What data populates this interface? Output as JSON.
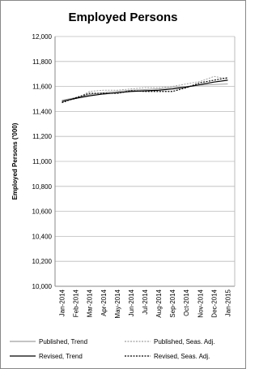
{
  "chart_data": {
    "type": "line",
    "title": "Employed Persons",
    "y_label": "Employed Persons ('000)",
    "categories": [
      "Jan-2014",
      "Feb-2014",
      "Mar-2014",
      "Apr-2014",
      "May-2014",
      "Jun-2014",
      "Jul-2014",
      "Aug-2014",
      "Sep-2014",
      "Oct-2014",
      "Nov-2014",
      "Dec-2014",
      "Jan-2015"
    ],
    "series": [
      {
        "name": "Published, Trend",
        "color": "#a0a0a0",
        "dash": false,
        "values": [
          11490,
          11510,
          11535,
          11550,
          11560,
          11570,
          11575,
          11580,
          11590,
          11600,
          11610,
          11615,
          11620
        ]
      },
      {
        "name": "Published, Seas. Adj.",
        "color": "#a0a0a0",
        "dash": true,
        "values": [
          11480,
          11500,
          11560,
          11570,
          11570,
          11580,
          11590,
          11590,
          11600,
          11620,
          11640,
          11680,
          11660
        ]
      },
      {
        "name": "Revised, Trend",
        "color": "#000000",
        "dash": false,
        "values": [
          11480,
          11505,
          11525,
          11540,
          11550,
          11560,
          11565,
          11570,
          11580,
          11595,
          11615,
          11635,
          11650
        ]
      },
      {
        "name": "Revised, Seas. Adj.",
        "color": "#000000",
        "dash": true,
        "values": [
          11470,
          11510,
          11545,
          11545,
          11545,
          11565,
          11560,
          11560,
          11560,
          11590,
          11630,
          11650,
          11670
        ]
      }
    ],
    "ylim": [
      10000,
      12000
    ],
    "yticks": [
      {
        "value": 10000,
        "label": "10,000"
      },
      {
        "value": 10200,
        "label": "10,200"
      },
      {
        "value": 10400,
        "label": "10,400"
      },
      {
        "value": 10600,
        "label": "10,600"
      },
      {
        "value": 10800,
        "label": "10,800"
      },
      {
        "value": 11000,
        "label": "11,000"
      },
      {
        "value": 11200,
        "label": "11,200"
      },
      {
        "value": 11400,
        "label": "11,400"
      },
      {
        "value": 11600,
        "label": "11,600"
      },
      {
        "value": 11800,
        "label": "11,800"
      },
      {
        "value": 12000,
        "label": "12,000"
      }
    ],
    "grid": true
  }
}
